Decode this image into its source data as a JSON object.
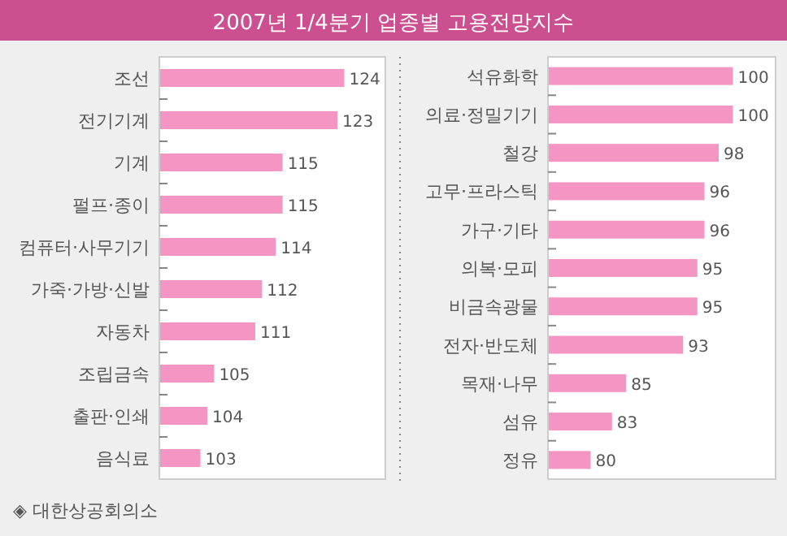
{
  "chart_data": [
    {
      "type": "bar",
      "orientation": "horizontal",
      "title": "2007년 1/4분기 업종별 고용전망지수",
      "annotations": [
        "◈ 대한상공회의소"
      ],
      "categories": [
        "조선",
        "전기기계",
        "기계",
        "펄프·종이",
        "컴퓨터·사무기기",
        "가죽·가방·신발",
        "자동차",
        "조립금속",
        "출판·인쇄",
        "음식료"
      ],
      "values": [
        124,
        123,
        115,
        115,
        114,
        112,
        111,
        105,
        104,
        103
      ],
      "color": "#f495c3",
      "data_labels": true,
      "xlim": [
        97,
        130
      ],
      "tick_labels": "y"
    },
    {
      "type": "bar",
      "orientation": "horizontal",
      "categories": [
        "석유화학",
        "의료·정밀기기",
        "철강",
        "고무·프라스틱",
        "가구·기타",
        "의복·모피",
        "비금속광물",
        "전자·반도체",
        "목재·나무",
        "섬유",
        "정유"
      ],
      "values": [
        100,
        100,
        98,
        96,
        96,
        95,
        95,
        93,
        85,
        83,
        80
      ],
      "color": "#f495c3",
      "data_labels": true,
      "xlim": [
        74,
        106
      ],
      "tick_labels": "y"
    }
  ]
}
